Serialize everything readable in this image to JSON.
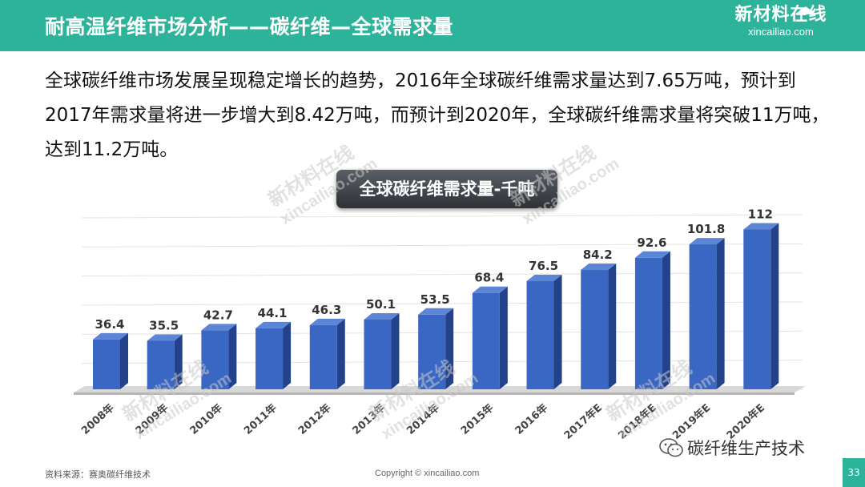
{
  "header": {
    "title": "耐高温纤维市场分析——碳纤维—全球需求量",
    "logo_cn": "新材料在线",
    "logo_en": "xincailiao.com"
  },
  "intro_text": "全球碳纤维市场发展呈现稳定增长的趋势，2016年全球碳纤维需求量达到7.65万吨，预计到2017年需求量将进一步增大到8.42万吨，而预计到2020年，全球碳纤维需求量将突破11万吨，达到11.2万吨。",
  "watermark": {
    "cn": "新材料在线",
    "en": "xincailiao.com"
  },
  "chart_data": {
    "type": "bar",
    "title": "全球碳纤维需求量-千吨",
    "categories": [
      "2008年",
      "2009年",
      "2010年",
      "2011年",
      "2012年",
      "2013年",
      "2014年",
      "2015年",
      "2016年",
      "2017年E",
      "2018年E",
      "2019年E",
      "2020年E"
    ],
    "values": [
      36.4,
      35.5,
      42.7,
      44.1,
      46.3,
      50.1,
      53.5,
      68.4,
      76.5,
      84.2,
      92.6,
      101.8,
      112
    ],
    "value_labels": [
      "36.4",
      "35.5",
      "42.7",
      "44.1",
      "46.3",
      "50.1",
      "53.5",
      "68.4",
      "76.5",
      "84.2",
      "92.6",
      "101.8",
      "112"
    ],
    "ylim": [
      0,
      120
    ],
    "grid": true,
    "bar_color": "#3a66c4",
    "xlabel": "",
    "ylabel": ""
  },
  "footer": {
    "source": "资料来源：赛奥碳纤维技术",
    "copyright": "Copyright © xincailiao.com",
    "wechat_label": "碳纤维生产技术",
    "page_number": "33"
  },
  "colors": {
    "accent": "#2db39a",
    "bar": "#3a66c4",
    "badge": "#3e4349"
  }
}
